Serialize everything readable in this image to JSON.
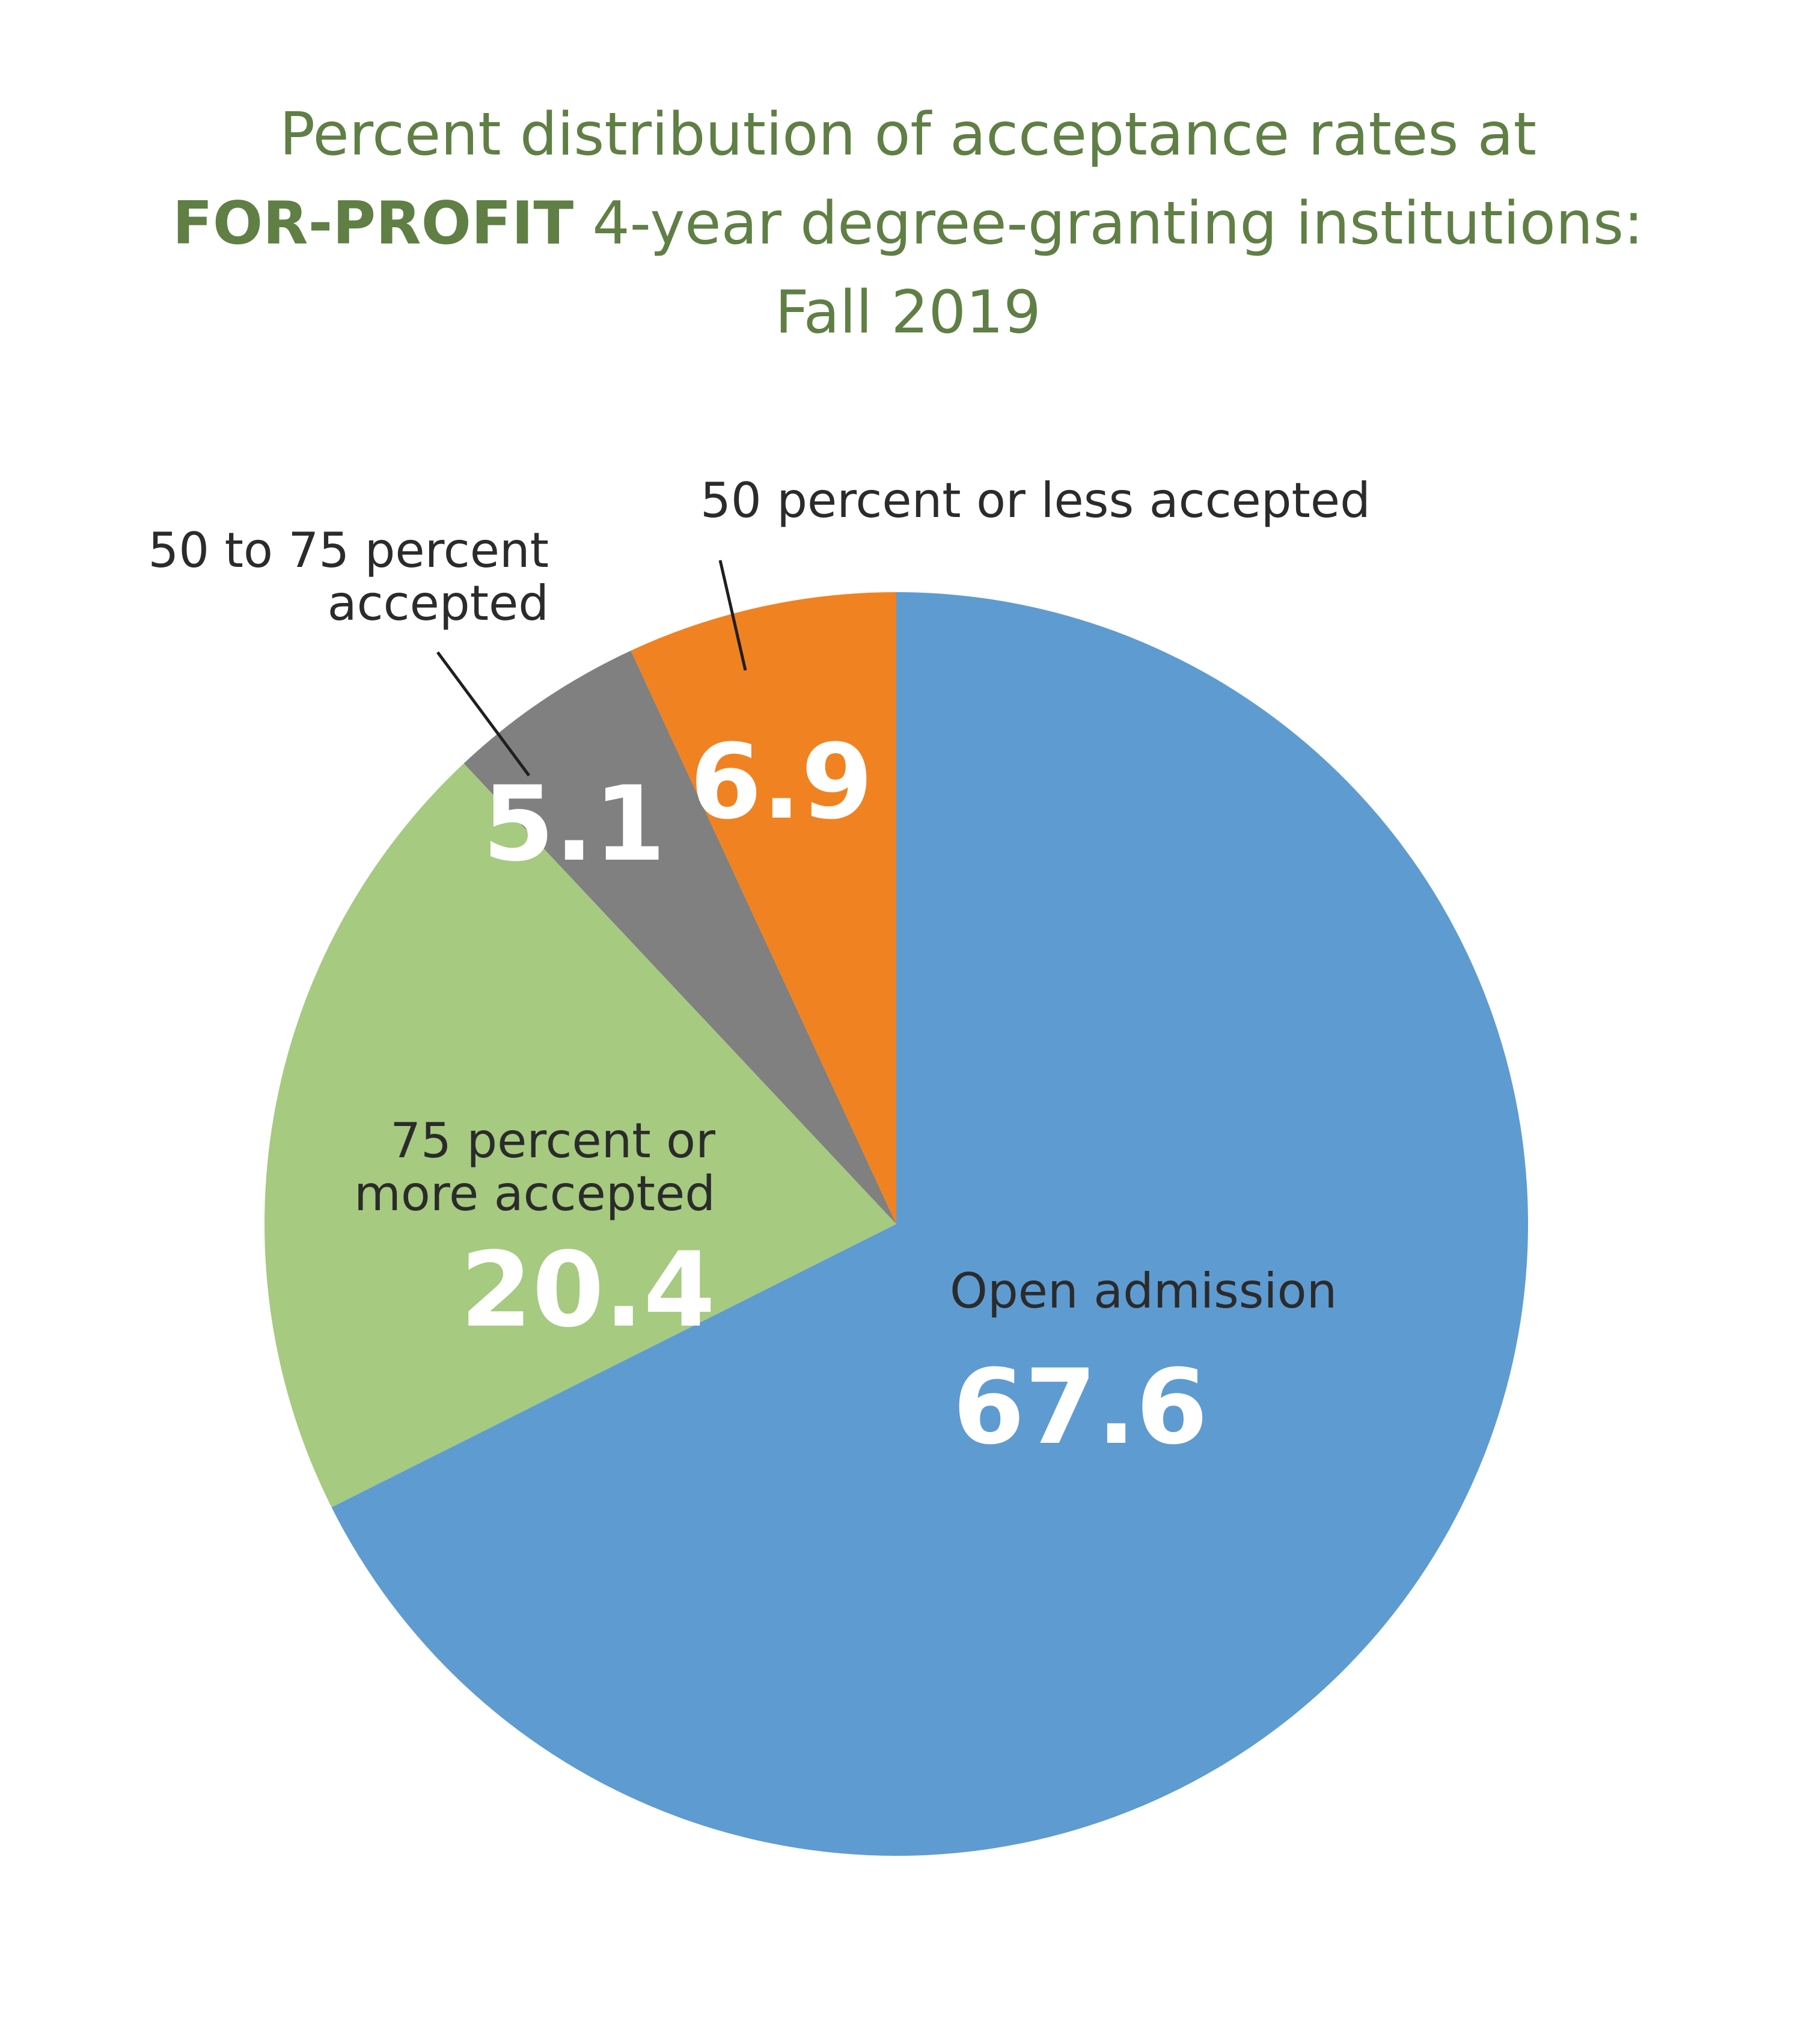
{
  "title": {
    "line1": "Percent distribution of acceptance rates at",
    "line2_bold": "FOR-PROFIT",
    "line2_rest": " 4-year degree-granting institutions:",
    "line3": "Fall 2019"
  },
  "chart_data": {
    "type": "pie",
    "title": "Percent distribution of acceptance rates at FOR-PROFIT 4-year degree-granting institutions: Fall 2019",
    "start_angle_deg": 0,
    "direction": "clockwise",
    "slices": [
      {
        "label": "Open admission",
        "label_lines": [
          "Open admission"
        ],
        "value": 67.6,
        "value_label": "67.6",
        "color": "#5e9bd1"
      },
      {
        "label": "75 percent or more accepted",
        "label_lines": [
          "75 percent or",
          "more accepted"
        ],
        "value": 20.4,
        "value_label": "20.4",
        "color": "#a6ca80"
      },
      {
        "label": "50 to 75 percent accepted",
        "label_lines": [
          "50 to 75 percent",
          "accepted"
        ],
        "value": 5.1,
        "value_label": "5.1",
        "color": "#7f807f"
      },
      {
        "label": "50 percent or less accepted",
        "label_lines": [
          "50 percent or less accepted"
        ],
        "value": 6.9,
        "value_label": "6.9",
        "color": "#f08222"
      }
    ]
  }
}
